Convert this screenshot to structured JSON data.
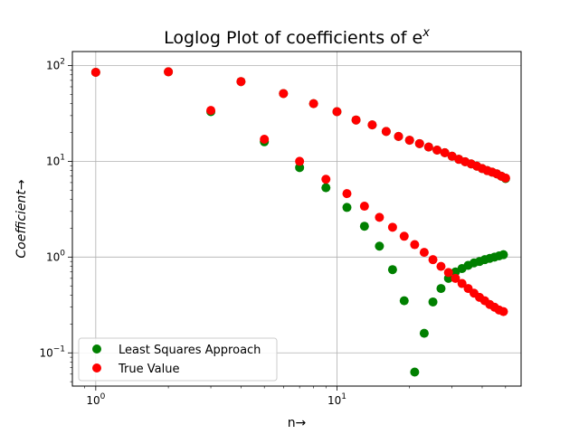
{
  "chart_data": {
    "type": "scatter",
    "title": "Loglog Plot of coefficients of e",
    "title_superscript": "x",
    "xlabel": "n→",
    "ylabel": "Coefficient→",
    "xscale": "log",
    "yscale": "log",
    "xlim": [
      0.8,
      58
    ],
    "ylim": [
      0.045,
      140
    ],
    "grid": true,
    "legend_position": "lower-left",
    "x_ticks": [
      {
        "value": 1,
        "base": "10",
        "exp": "0"
      },
      {
        "value": 10,
        "base": "10",
        "exp": "1"
      }
    ],
    "y_ticks": [
      {
        "value": 0.1,
        "base": "10",
        "exp": "−1"
      },
      {
        "value": 1,
        "base": "10",
        "exp": "0"
      },
      {
        "value": 10,
        "base": "10",
        "exp": "1"
      },
      {
        "value": 100,
        "base": "10",
        "exp": "2"
      }
    ],
    "series": [
      {
        "name": "Least Squares Approach",
        "color": "#008000",
        "points": [
          [
            1,
            85
          ],
          [
            3,
            33
          ],
          [
            5,
            16
          ],
          [
            7,
            8.6
          ],
          [
            9,
            5.3
          ],
          [
            11,
            3.3
          ],
          [
            13,
            2.1
          ],
          [
            15,
            1.3
          ],
          [
            17,
            0.74
          ],
          [
            19,
            0.35
          ],
          [
            21,
            0.063
          ],
          [
            23,
            0.16
          ],
          [
            25,
            0.34
          ],
          [
            27,
            0.47
          ],
          [
            29,
            0.6
          ],
          [
            31,
            0.7
          ],
          [
            33,
            0.76
          ],
          [
            35,
            0.82
          ],
          [
            37,
            0.87
          ],
          [
            39,
            0.9
          ],
          [
            41,
            0.94
          ],
          [
            43,
            0.97
          ],
          [
            45,
            1.0
          ],
          [
            47,
            1.03
          ],
          [
            49,
            1.06
          ],
          [
            2,
            86
          ],
          [
            4,
            68
          ],
          [
            6,
            51
          ],
          [
            8,
            40
          ],
          [
            10,
            33
          ],
          [
            12,
            27
          ],
          [
            14,
            24
          ],
          [
            16,
            20.5
          ],
          [
            18,
            18.2
          ],
          [
            20,
            16.6
          ],
          [
            22,
            15.3
          ],
          [
            24,
            14.1
          ],
          [
            26,
            13.1
          ],
          [
            28,
            12.3
          ],
          [
            30,
            11.3
          ],
          [
            32,
            10.5
          ],
          [
            34,
            9.9
          ],
          [
            36,
            9.4
          ],
          [
            38,
            8.9
          ],
          [
            40,
            8.4
          ],
          [
            42,
            8.0
          ],
          [
            44,
            7.7
          ],
          [
            46,
            7.4
          ],
          [
            48,
            7.0
          ],
          [
            50,
            6.6
          ]
        ]
      },
      {
        "name": "True Value",
        "color": "#ff0000",
        "points": [
          [
            1,
            85
          ],
          [
            2,
            86
          ],
          [
            3,
            34
          ],
          [
            4,
            68
          ],
          [
            5,
            17
          ],
          [
            6,
            51
          ],
          [
            7,
            10
          ],
          [
            8,
            40
          ],
          [
            9,
            6.5
          ],
          [
            10,
            33
          ],
          [
            11,
            4.6
          ],
          [
            12,
            27
          ],
          [
            13,
            3.4
          ],
          [
            14,
            24
          ],
          [
            15,
            2.6
          ],
          [
            16,
            20.5
          ],
          [
            17,
            2.05
          ],
          [
            18,
            18.2
          ],
          [
            19,
            1.65
          ],
          [
            20,
            16.6
          ],
          [
            21,
            1.35
          ],
          [
            22,
            15.3
          ],
          [
            23,
            1.12
          ],
          [
            24,
            14.1
          ],
          [
            25,
            0.94
          ],
          [
            26,
            13.1
          ],
          [
            27,
            0.8
          ],
          [
            28,
            12.3
          ],
          [
            29,
            0.69
          ],
          [
            30,
            11.3
          ],
          [
            31,
            0.6
          ],
          [
            32,
            10.5
          ],
          [
            33,
            0.53
          ],
          [
            34,
            9.9
          ],
          [
            35,
            0.47
          ],
          [
            36,
            9.4
          ],
          [
            37,
            0.42
          ],
          [
            38,
            8.9
          ],
          [
            39,
            0.38
          ],
          [
            40,
            8.4
          ],
          [
            41,
            0.35
          ],
          [
            42,
            8.0
          ],
          [
            43,
            0.32
          ],
          [
            44,
            7.7
          ],
          [
            45,
            0.3
          ],
          [
            46,
            7.4
          ],
          [
            47,
            0.28
          ],
          [
            48,
            7.0
          ],
          [
            49,
            0.27
          ],
          [
            50,
            6.7
          ]
        ]
      }
    ]
  }
}
